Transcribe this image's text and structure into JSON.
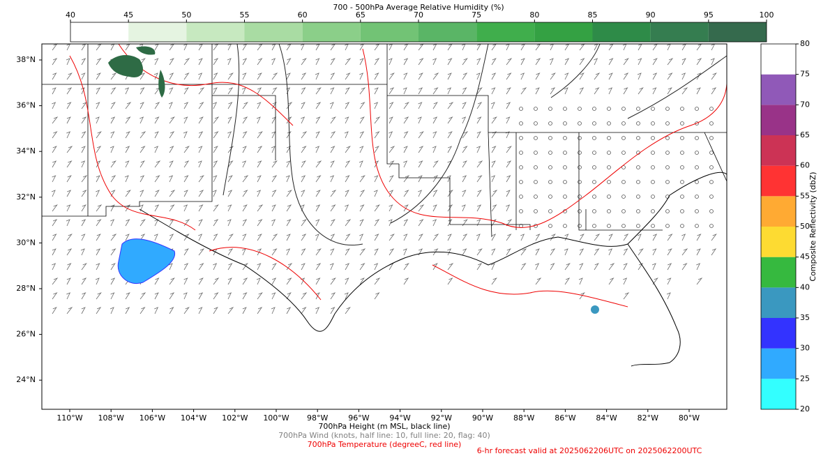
{
  "humidity_colorbar": {
    "title": "700 - 500hPa Average Relative Humidity (%)",
    "ticks": [
      40,
      45,
      50,
      55,
      60,
      65,
      70,
      75,
      80,
      85,
      90,
      95,
      100
    ],
    "colors": [
      "#ffffff",
      "#e5f4e1",
      "#c7e9c0",
      "#a9dca3",
      "#8bcf89",
      "#72c375",
      "#5ab566",
      "#40ae4c",
      "#34a143",
      "#2e8b48",
      "#357d50",
      "#356a4d"
    ]
  },
  "reflectivity_colorbar": {
    "label": "Composite Reflectivity (dbZ)",
    "ticks": [
      20,
      25,
      30,
      35,
      40,
      45,
      50,
      55,
      60,
      65,
      70,
      75,
      80
    ],
    "colors": [
      "#33ffff",
      "#30aaff",
      "#3333ff",
      "#3a98c0",
      "#36b93f",
      "#fddb32",
      "#ffaa33",
      "#ff3333",
      "#cc3355",
      "#993388",
      "#9059b8",
      "#ffffff"
    ]
  },
  "map": {
    "lat_labels": [
      "38°N",
      "36°N",
      "34°N",
      "32°N",
      "30°N",
      "28°N",
      "26°N",
      "24°N"
    ],
    "lon_labels": [
      "110°W",
      "108°W",
      "106°W",
      "104°W",
      "102°W",
      "100°W",
      "98°W",
      "96°W",
      "94°W",
      "92°W",
      "90°W",
      "88°W",
      "86°W",
      "84°W",
      "82°W",
      "80°W"
    ]
  },
  "captions": [
    "700hPa Height (m MSL, black line)",
    "700hPa Wind (knots, half line: 10, full line: 20, flag: 40)",
    "700hPa Temperature (degreeC, red line)",
    "6-hr forecast valid at 2025062206UTC on 2025062200UTC"
  ]
}
